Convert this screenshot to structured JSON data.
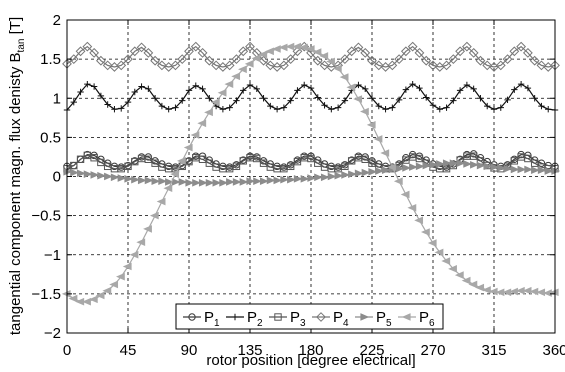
{
  "chart_data": {
    "type": "line",
    "title": "",
    "xlabel": "rotor position [degree electrical]",
    "ylabel": "tangential component magn. flux denisty B",
    "ylabel_sub": "tan",
    "ylabel_unit": " [T]",
    "xlim": [
      0,
      360
    ],
    "ylim": [
      -2,
      2
    ],
    "x_ticks": [
      0,
      45,
      90,
      135,
      180,
      225,
      270,
      315,
      360
    ],
    "y_ticks": [
      -2,
      -1.5,
      -1,
      -0.5,
      0,
      0.5,
      1,
      1.5,
      2
    ],
    "x_tick_labels": [
      "0",
      "45",
      "90",
      "135",
      "180",
      "225",
      "270",
      "315",
      "360"
    ],
    "y_tick_labels": [
      "−2",
      "−1.5",
      "−1",
      "−0.5",
      "0",
      "0.5",
      "1",
      "1.5",
      "2"
    ],
    "grid": true,
    "legend_position": "bottom-center",
    "x": [
      0,
      5,
      10,
      15,
      20,
      25,
      30,
      35,
      40,
      45,
      50,
      55,
      60,
      65,
      70,
      75,
      80,
      85,
      90,
      95,
      100,
      105,
      110,
      115,
      120,
      125,
      130,
      135,
      140,
      145,
      150,
      155,
      160,
      165,
      170,
      175,
      180,
      185,
      190,
      195,
      200,
      205,
      210,
      215,
      220,
      225,
      230,
      235,
      240,
      245,
      250,
      255,
      260,
      265,
      270,
      275,
      280,
      285,
      290,
      295,
      300,
      305,
      310,
      315,
      320,
      325,
      330,
      335,
      340,
      345,
      350,
      355,
      360
    ],
    "series": [
      {
        "name": "P",
        "sub": "1",
        "marker": "circle",
        "color": "#3a3a3a",
        "values": [
          0.13,
          0.14,
          0.22,
          0.28,
          0.27,
          0.22,
          0.17,
          0.13,
          0.12,
          0.14,
          0.2,
          0.25,
          0.25,
          0.2,
          0.16,
          0.13,
          0.12,
          0.14,
          0.2,
          0.26,
          0.26,
          0.21,
          0.16,
          0.13,
          0.12,
          0.15,
          0.21,
          0.26,
          0.25,
          0.2,
          0.16,
          0.13,
          0.12,
          0.15,
          0.21,
          0.26,
          0.26,
          0.21,
          0.16,
          0.13,
          0.12,
          0.15,
          0.21,
          0.26,
          0.25,
          0.2,
          0.16,
          0.13,
          0.12,
          0.16,
          0.24,
          0.28,
          0.26,
          0.21,
          0.16,
          0.13,
          0.12,
          0.16,
          0.22,
          0.28,
          0.29,
          0.24,
          0.19,
          0.15,
          0.13,
          0.15,
          0.22,
          0.28,
          0.27,
          0.21,
          0.17,
          0.14,
          0.13
        ]
      },
      {
        "name": "P",
        "sub": "2",
        "marker": "plus",
        "color": "#111111",
        "values": [
          0.85,
          0.95,
          1.08,
          1.18,
          1.15,
          1.03,
          0.92,
          0.86,
          0.87,
          0.95,
          1.08,
          1.15,
          1.12,
          1.0,
          0.9,
          0.86,
          0.88,
          0.97,
          1.1,
          1.16,
          1.12,
          1.0,
          0.9,
          0.86,
          0.88,
          0.97,
          1.1,
          1.17,
          1.12,
          1.0,
          0.9,
          0.86,
          0.88,
          0.97,
          1.1,
          1.17,
          1.13,
          1.01,
          0.91,
          0.86,
          0.88,
          0.97,
          1.1,
          1.17,
          1.12,
          1.0,
          0.9,
          0.86,
          0.88,
          0.98,
          1.11,
          1.18,
          1.13,
          1.01,
          0.91,
          0.86,
          0.88,
          0.97,
          1.1,
          1.17,
          1.12,
          1.0,
          0.9,
          0.86,
          0.88,
          0.98,
          1.11,
          1.18,
          1.13,
          1.0,
          0.9,
          0.86,
          0.85
        ]
      },
      {
        "name": "P",
        "sub": "3",
        "marker": "square",
        "color": "#555555",
        "values": [
          0.1,
          0.14,
          0.22,
          0.27,
          0.24,
          0.18,
          0.13,
          0.1,
          0.1,
          0.13,
          0.19,
          0.23,
          0.22,
          0.17,
          0.12,
          0.1,
          0.1,
          0.13,
          0.19,
          0.24,
          0.22,
          0.17,
          0.12,
          0.1,
          0.1,
          0.13,
          0.2,
          0.24,
          0.23,
          0.17,
          0.12,
          0.1,
          0.1,
          0.13,
          0.19,
          0.24,
          0.23,
          0.17,
          0.12,
          0.1,
          0.1,
          0.13,
          0.2,
          0.24,
          0.22,
          0.17,
          0.12,
          0.1,
          0.1,
          0.14,
          0.21,
          0.25,
          0.23,
          0.17,
          0.12,
          0.1,
          0.1,
          0.14,
          0.21,
          0.26,
          0.26,
          0.2,
          0.14,
          0.11,
          0.1,
          0.13,
          0.2,
          0.25,
          0.23,
          0.17,
          0.12,
          0.1,
          0.1
        ]
      },
      {
        "name": "P",
        "sub": "4",
        "marker": "diamond",
        "color": "#777777",
        "values": [
          1.44,
          1.5,
          1.6,
          1.66,
          1.58,
          1.48,
          1.42,
          1.4,
          1.42,
          1.5,
          1.6,
          1.65,
          1.58,
          1.48,
          1.42,
          1.4,
          1.42,
          1.5,
          1.6,
          1.66,
          1.58,
          1.48,
          1.42,
          1.4,
          1.42,
          1.5,
          1.6,
          1.66,
          1.58,
          1.48,
          1.42,
          1.4,
          1.42,
          1.5,
          1.6,
          1.66,
          1.58,
          1.48,
          1.42,
          1.4,
          1.42,
          1.5,
          1.6,
          1.65,
          1.58,
          1.48,
          1.42,
          1.4,
          1.42,
          1.5,
          1.6,
          1.66,
          1.58,
          1.48,
          1.42,
          1.4,
          1.42,
          1.5,
          1.6,
          1.66,
          1.58,
          1.48,
          1.42,
          1.4,
          1.42,
          1.5,
          1.6,
          1.66,
          1.58,
          1.48,
          1.42,
          1.4,
          1.42
        ]
      },
      {
        "name": "P",
        "sub": "5",
        "marker": "triangle-right",
        "color": "#8c8c8c",
        "values": [
          0.06,
          0.05,
          0.04,
          0.03,
          0.02,
          0.01,
          0.0,
          -0.01,
          -0.02,
          -0.03,
          -0.04,
          -0.05,
          -0.05,
          -0.06,
          -0.06,
          -0.07,
          -0.07,
          -0.07,
          -0.08,
          -0.08,
          -0.08,
          -0.08,
          -0.08,
          -0.08,
          -0.07,
          -0.07,
          -0.07,
          -0.06,
          -0.06,
          -0.06,
          -0.05,
          -0.05,
          -0.04,
          -0.04,
          -0.03,
          -0.03,
          -0.02,
          -0.01,
          -0.01,
          0.0,
          0.01,
          0.02,
          0.03,
          0.04,
          0.05,
          0.06,
          0.07,
          0.08,
          0.09,
          0.1,
          0.11,
          0.12,
          0.13,
          0.14,
          0.15,
          0.16,
          0.17,
          0.17,
          0.17,
          0.16,
          0.15,
          0.14,
          0.13,
          0.12,
          0.11,
          0.1,
          0.09,
          0.09,
          0.09,
          0.08,
          0.08,
          0.07,
          0.07
        ]
      },
      {
        "name": "P",
        "sub": "6",
        "marker": "triangle-left",
        "color": "#a8a8a8",
        "values": [
          -1.5,
          -1.56,
          -1.6,
          -1.6,
          -1.57,
          -1.52,
          -1.46,
          -1.38,
          -1.28,
          -1.15,
          -1.0,
          -0.84,
          -0.67,
          -0.5,
          -0.32,
          -0.15,
          0.03,
          0.2,
          0.37,
          0.53,
          0.68,
          0.82,
          0.95,
          1.07,
          1.18,
          1.28,
          1.37,
          1.44,
          1.51,
          1.56,
          1.6,
          1.63,
          1.65,
          1.66,
          1.66,
          1.65,
          1.63,
          1.59,
          1.54,
          1.47,
          1.38,
          1.27,
          1.14,
          0.99,
          0.83,
          0.66,
          0.48,
          0.3,
          0.12,
          -0.06,
          -0.23,
          -0.4,
          -0.56,
          -0.71,
          -0.85,
          -0.97,
          -1.08,
          -1.18,
          -1.26,
          -1.33,
          -1.38,
          -1.42,
          -1.45,
          -1.47,
          -1.48,
          -1.48,
          -1.47,
          -1.46,
          -1.46,
          -1.47,
          -1.48,
          -1.49,
          -1.48
        ]
      }
    ]
  }
}
